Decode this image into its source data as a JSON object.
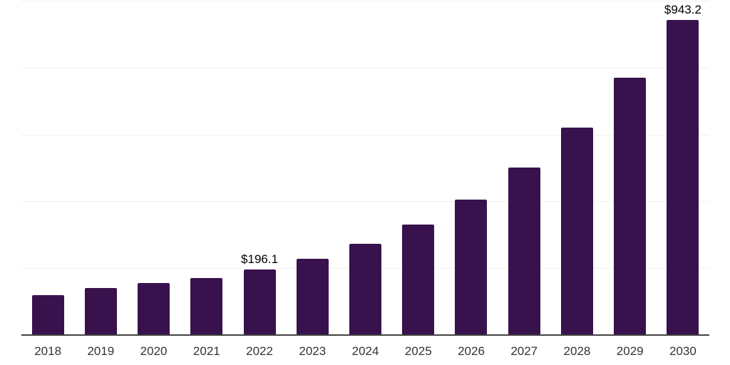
{
  "chart_data": {
    "type": "bar",
    "title": "",
    "xlabel": "",
    "ylabel": "",
    "categories": [
      "2018",
      "2019",
      "2020",
      "2021",
      "2022",
      "2023",
      "2024",
      "2025",
      "2026",
      "2027",
      "2028",
      "2029",
      "2030"
    ],
    "values": [
      120,
      141,
      156,
      171,
      196.1,
      229,
      273,
      331,
      405,
      502,
      620,
      769,
      943.2
    ],
    "data_labels": {
      "2022": "$196.1",
      "2030": "$943.2"
    },
    "ylim": [
      0,
      1000
    ],
    "gridline_step": 200,
    "grid": true,
    "legend": false,
    "colors": {
      "bar": "#38124d",
      "gridline": "#f0f0f0",
      "axis": "#424242",
      "tick_label": "#333333",
      "value_label": "#000000"
    }
  }
}
